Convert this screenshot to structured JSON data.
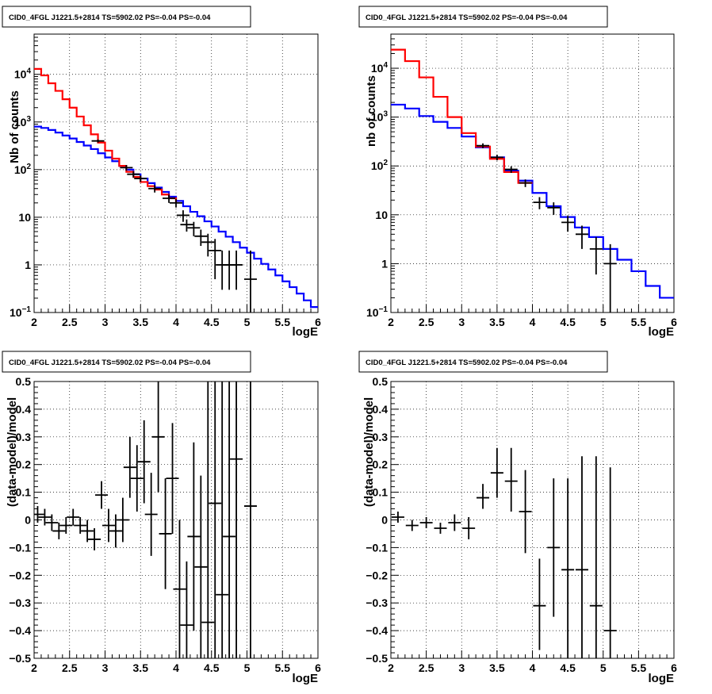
{
  "panel_title": "CID0_4FGL J1221.5+2814 TS=5902.02 PS=-0.04 PS=-0.04",
  "colors": {
    "model_total": "#ff0000",
    "model_source": "#0000ff",
    "data": "#000000"
  },
  "chart_data": [
    {
      "id": "top-left",
      "type": "line",
      "title": "CID0_4FGL J1221.5+2814 TS=5902.02 PS=-0.04 PS=-0.04",
      "xlabel": "logE",
      "ylabel": "Nb of counts",
      "xlim": [
        2,
        6
      ],
      "ylim": [
        0.1,
        70000
      ],
      "yscale": "log",
      "grid": true,
      "xticks": [
        "2",
        "2.5",
        "3",
        "3.5",
        "4",
        "4.5",
        "5",
        "5.5",
        "6"
      ],
      "yticks": [
        {
          "v": 0.1,
          "base": "10",
          "exp": "−1"
        },
        {
          "v": 1,
          "label": "1"
        },
        {
          "v": 10,
          "label": "10"
        },
        {
          "v": 100,
          "base": "10",
          "exp": "2"
        },
        {
          "v": 1000,
          "base": "10",
          "exp": "3"
        },
        {
          "v": 10000,
          "base": "10",
          "exp": "4"
        }
      ],
      "series": [
        {
          "role": "model_total",
          "type": "step",
          "edges": [
            2.0,
            2.1,
            2.2,
            2.3,
            2.4,
            2.5,
            2.6,
            2.7,
            2.8,
            2.9,
            3.0,
            3.1,
            3.2,
            3.3,
            3.4,
            3.5,
            3.6,
            3.7,
            3.8,
            3.9,
            4.0
          ],
          "values": [
            13000,
            9500,
            6500,
            4500,
            3000,
            2000,
            1300,
            850,
            550,
            370,
            250,
            170,
            120,
            90,
            70,
            55,
            45,
            38,
            30,
            25,
            20
          ]
        },
        {
          "role": "model_source",
          "type": "step",
          "edges": [
            2.0,
            2.1,
            2.2,
            2.3,
            2.4,
            2.5,
            2.6,
            2.7,
            2.8,
            2.9,
            3.0,
            3.1,
            3.2,
            3.3,
            3.4,
            3.5,
            3.6,
            3.7,
            3.8,
            3.9,
            4.0,
            4.1,
            4.2,
            4.3,
            4.4,
            4.5,
            4.6,
            4.7,
            4.8,
            4.9,
            5.0,
            5.1,
            5.2,
            5.3,
            5.4,
            5.5,
            5.6,
            5.7,
            5.8,
            5.9,
            6.0
          ],
          "values": [
            800,
            750,
            680,
            600,
            520,
            450,
            380,
            320,
            270,
            220,
            180,
            150,
            120,
            100,
            80,
            65,
            52,
            42,
            34,
            27,
            22,
            17,
            13,
            10.5,
            8.2,
            6.4,
            5.0,
            3.9,
            3.0,
            2.3,
            1.8,
            1.35,
            1.05,
            0.8,
            0.6,
            0.45,
            0.34,
            0.25,
            0.18,
            0.13
          ]
        },
        {
          "role": "data",
          "type": "errorbar",
          "x": [
            2.9,
            3.3,
            3.4,
            3.5,
            3.7,
            3.9,
            4.0,
            4.1,
            4.15,
            4.25,
            4.35,
            4.45,
            4.55,
            4.65,
            4.75,
            4.85,
            5.05
          ],
          "y": [
            400,
            110,
            80,
            65,
            40,
            25,
            20,
            11,
            7,
            6,
            4,
            3,
            2,
            1,
            1,
            1,
            0.5
          ],
          "lo": [
            370,
            95,
            68,
            55,
            33,
            20,
            16,
            8,
            5,
            4,
            2.5,
            1.5,
            0.5,
            0.3,
            0.3,
            0.3,
            0.1
          ],
          "hi": [
            430,
            125,
            92,
            75,
            47,
            30,
            24,
            14,
            9,
            8,
            5.5,
            4.5,
            3.5,
            2,
            2,
            2,
            2
          ]
        }
      ]
    },
    {
      "id": "top-right",
      "type": "line",
      "title": "CID0_4FGL J1221.5+2814 TS=5902.02 PS=-0.04 PS=-0.04",
      "xlabel": "logE",
      "ylabel": "nb of counts",
      "xlim": [
        2,
        6
      ],
      "ylim": [
        0.1,
        50000
      ],
      "yscale": "log",
      "grid": true,
      "xticks": [
        "2",
        "2.5",
        "3",
        "3.5",
        "4",
        "4.5",
        "5",
        "5.5",
        "6"
      ],
      "yticks": [
        {
          "v": 0.1,
          "base": "10",
          "exp": "−1"
        },
        {
          "v": 1,
          "label": "1"
        },
        {
          "v": 10,
          "label": "10"
        },
        {
          "v": 100,
          "base": "10",
          "exp": "2"
        },
        {
          "v": 1000,
          "base": "10",
          "exp": "3"
        },
        {
          "v": 10000,
          "base": "10",
          "exp": "4"
        }
      ],
      "series": [
        {
          "role": "model_total",
          "type": "step",
          "edges": [
            2.0,
            2.2,
            2.4,
            2.6,
            2.8,
            3.0,
            3.2,
            3.4,
            3.6,
            3.8,
            4.0
          ],
          "values": [
            24000,
            14000,
            6500,
            2600,
            1000,
            470,
            250,
            140,
            75,
            45
          ]
        },
        {
          "role": "model_source",
          "type": "step",
          "edges": [
            2.0,
            2.2,
            2.4,
            2.6,
            2.8,
            3.0,
            3.2,
            3.4,
            3.6,
            3.8,
            4.0,
            4.2,
            4.4,
            4.6,
            4.8,
            5.0,
            5.2,
            5.4,
            5.6,
            5.8,
            6.0
          ],
          "values": [
            1800,
            1500,
            1050,
            800,
            600,
            400,
            240,
            150,
            80,
            50,
            28,
            15,
            9,
            5.5,
            3.5,
            2.0,
            1.2,
            0.7,
            0.35,
            0.2
          ]
        },
        {
          "role": "data",
          "type": "errorbar",
          "x": [
            3.3,
            3.5,
            3.7,
            3.9,
            4.1,
            4.3,
            4.5,
            4.7,
            4.9,
            5.1
          ],
          "y": [
            260,
            150,
            85,
            45,
            18,
            14,
            7,
            4,
            2,
            1
          ],
          "lo": [
            230,
            130,
            72,
            37,
            13,
            10,
            4.5,
            2,
            0.6,
            0.1
          ],
          "hi": [
            290,
            170,
            98,
            53,
            23,
            18,
            9.5,
            6,
            3.5,
            2.5
          ]
        }
      ]
    },
    {
      "id": "bottom-left",
      "type": "scatter",
      "title": "CID0_4FGL J1221.5+2814 TS=5902.02 PS=-0.04 PS=-0.04",
      "xlabel": "logE",
      "ylabel": "(data-model)/model",
      "xlim": [
        2,
        6
      ],
      "ylim": [
        -0.5,
        0.5
      ],
      "grid": true,
      "xticks": [
        "2",
        "2.5",
        "3",
        "3.5",
        "4",
        "4.5",
        "5",
        "5.5",
        "6"
      ],
      "yticks": [
        "−0.5",
        "−0.4",
        "−0.3",
        "−0.2",
        "−0.1",
        "0",
        "0.1",
        "0.2",
        "0.3",
        "0.4",
        "0.5"
      ],
      "series": [
        {
          "role": "data",
          "type": "errorbar",
          "x": [
            2.05,
            2.15,
            2.25,
            2.35,
            2.45,
            2.55,
            2.65,
            2.75,
            2.85,
            2.95,
            3.05,
            3.15,
            3.25,
            3.35,
            3.45,
            3.55,
            3.65,
            3.75,
            3.85,
            3.95,
            4.05,
            4.15,
            4.25,
            4.35,
            4.45,
            4.55,
            4.65,
            4.75,
            4.85,
            5.05
          ],
          "y": [
            0.02,
            0.01,
            -0.01,
            -0.04,
            -0.02,
            0.01,
            -0.02,
            -0.04,
            -0.07,
            0.09,
            -0.02,
            -0.04,
            0,
            0.19,
            0.15,
            0.21,
            0.02,
            0.3,
            -0.05,
            0.15,
            -0.25,
            -0.38,
            -0.06,
            -0.17,
            -0.37,
            0.06,
            -0.27,
            -0.06,
            0.22,
            0.05
          ],
          "lo": [
            -0.01,
            -0.02,
            -0.04,
            -0.07,
            -0.05,
            -0.02,
            -0.05,
            -0.08,
            -0.11,
            0.04,
            -0.08,
            -0.1,
            -0.08,
            0.08,
            0.03,
            0.06,
            -0.13,
            0.1,
            -0.25,
            -0.05,
            -0.5,
            -0.5,
            -0.4,
            -0.5,
            -0.5,
            -0.5,
            -0.5,
            -0.5,
            -0.5,
            -0.5
          ],
          "hi": [
            0.05,
            0.04,
            0.02,
            -0.01,
            0.01,
            0.04,
            0.01,
            0,
            -0.03,
            0.14,
            0.04,
            0.02,
            0.08,
            0.3,
            0.27,
            0.36,
            0.17,
            0.5,
            0.15,
            0.35,
            0,
            -0.15,
            0.28,
            0.16,
            0.5,
            0.5,
            0.5,
            0.5,
            0.5,
            0.5
          ]
        }
      ]
    },
    {
      "id": "bottom-right",
      "type": "scatter",
      "title": "CID0_4FGL J1221.5+2814 TS=5902.02 PS=-0.04 PS=-0.04",
      "xlabel": "logE",
      "ylabel": "(data-model)/model",
      "xlim": [
        2,
        6
      ],
      "ylim": [
        -0.5,
        0.5
      ],
      "grid": true,
      "xticks": [
        "2",
        "2.5",
        "3",
        "3.5",
        "4",
        "4.5",
        "5",
        "5.5",
        "6"
      ],
      "yticks": [
        "−0.5",
        "−0.4",
        "−0.3",
        "−0.2",
        "−0.1",
        "0",
        "0.1",
        "0.2",
        "0.3",
        "0.4",
        "0.5"
      ],
      "series": [
        {
          "role": "data",
          "type": "errorbar",
          "x": [
            2.1,
            2.3,
            2.5,
            2.7,
            2.9,
            3.1,
            3.3,
            3.5,
            3.7,
            3.9,
            4.1,
            4.3,
            4.5,
            4.7,
            4.9,
            5.1
          ],
          "y": [
            0.01,
            -0.02,
            -0.01,
            -0.03,
            -0.01,
            -0.03,
            0.08,
            0.17,
            0.14,
            0.03,
            -0.31,
            -0.1,
            -0.18,
            -0.18,
            -0.31,
            -0.4
          ],
          "lo": [
            -0.01,
            -0.04,
            -0.03,
            -0.05,
            -0.04,
            -0.07,
            0.04,
            0.08,
            0.03,
            -0.12,
            -0.47,
            -0.35,
            -0.5,
            -0.5,
            -0.5,
            -0.5
          ],
          "hi": [
            0.03,
            0,
            0.01,
            -0.01,
            0.02,
            0.01,
            0.13,
            0.26,
            0.26,
            0.18,
            -0.14,
            0.15,
            0.15,
            0.23,
            0.23,
            0.19
          ]
        }
      ]
    }
  ]
}
